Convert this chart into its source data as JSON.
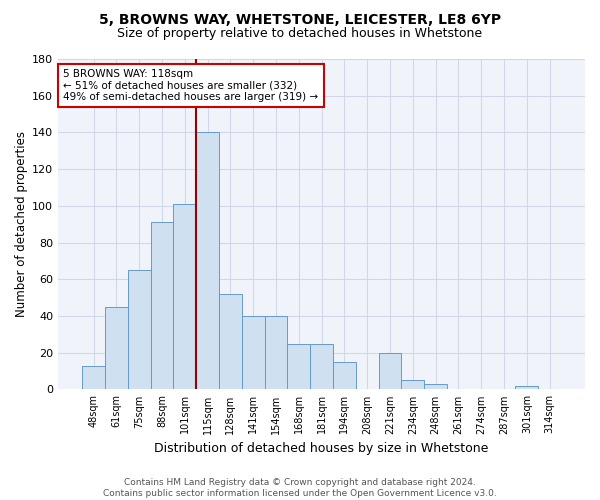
{
  "title1": "5, BROWNS WAY, WHETSTONE, LEICESTER, LE8 6YP",
  "title2": "Size of property relative to detached houses in Whetstone",
  "xlabel": "Distribution of detached houses by size in Whetstone",
  "ylabel": "Number of detached properties",
  "categories": [
    "48sqm",
    "61sqm",
    "75sqm",
    "88sqm",
    "101sqm",
    "115sqm",
    "128sqm",
    "141sqm",
    "154sqm",
    "168sqm",
    "181sqm",
    "194sqm",
    "208sqm",
    "221sqm",
    "234sqm",
    "248sqm",
    "261sqm",
    "274sqm",
    "287sqm",
    "301sqm",
    "314sqm"
  ],
  "values": [
    13,
    45,
    65,
    91,
    101,
    140,
    52,
    40,
    40,
    25,
    25,
    15,
    0,
    20,
    5,
    3,
    0,
    0,
    0,
    2,
    0
  ],
  "bar_color": "#cfe0f0",
  "bar_edge_color": "#6699cc",
  "bg_color": "#e8eef7",
  "plot_bg_color": "#f0f4fa",
  "grid_color": "#d0d8e8",
  "vline_color": "#990000",
  "vline_x": 5,
  "ylim": [
    0,
    180
  ],
  "yticks": [
    0,
    20,
    40,
    60,
    80,
    100,
    120,
    140,
    160,
    180
  ],
  "annotation_text": "5 BROWNS WAY: 118sqm\n← 51% of detached houses are smaller (332)\n49% of semi-detached houses are larger (319) →",
  "annotation_box_color": "#ffffff",
  "annotation_border_color": "#cc0000",
  "footnote": "Contains HM Land Registry data © Crown copyright and database right 2024.\nContains public sector information licensed under the Open Government Licence v3.0."
}
